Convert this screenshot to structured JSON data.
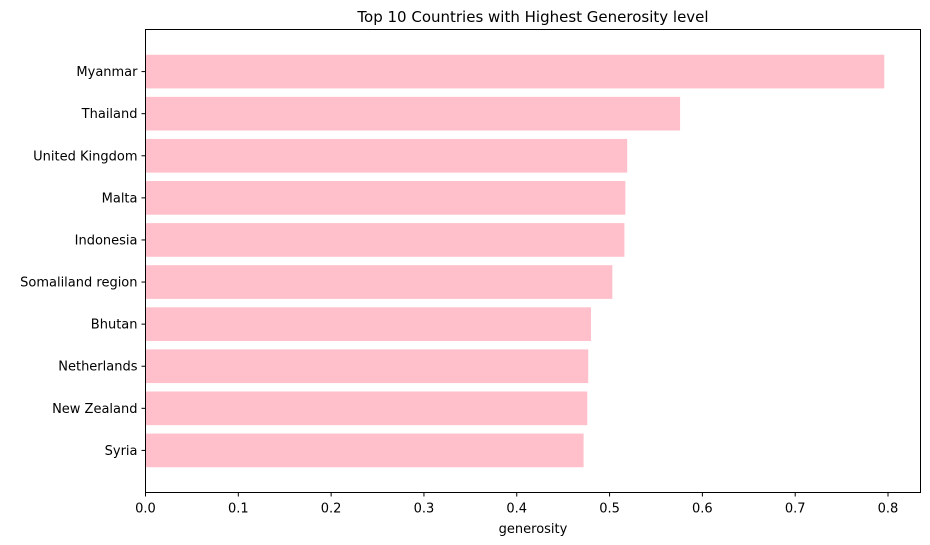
{
  "chart_data": {
    "type": "bar",
    "orientation": "horizontal",
    "title": "Top 10 Countries with Highest Generosity level",
    "xlabel": "generosity",
    "ylabel": "",
    "categories": [
      "Myanmar",
      "Thailand",
      "United Kingdom",
      "Malta",
      "Indonesia",
      "Somaliland region",
      "Bhutan",
      "Netherlands",
      "New Zealand",
      "Syria"
    ],
    "values": [
      0.796,
      0.576,
      0.519,
      0.517,
      0.516,
      0.503,
      0.48,
      0.477,
      0.476,
      0.472
    ],
    "xlim": [
      0,
      0.835
    ],
    "xticks": [
      0.0,
      0.1,
      0.2,
      0.3,
      0.4,
      0.5,
      0.6,
      0.7,
      0.8
    ],
    "xtick_labels": [
      "0.0",
      "0.1",
      "0.2",
      "0.3",
      "0.4",
      "0.5",
      "0.6",
      "0.7",
      "0.8"
    ],
    "bar_color": "#ffc0cb",
    "grid": false,
    "legend": "none"
  }
}
